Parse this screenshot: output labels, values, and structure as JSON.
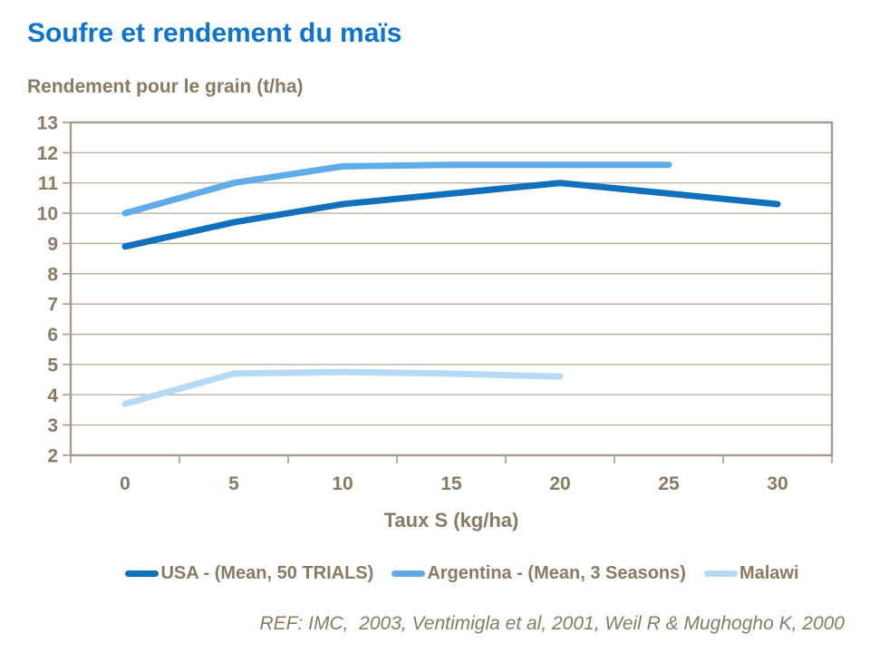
{
  "colors": {
    "title": "#0b74cc",
    "text": "#8a7a64",
    "frame": "#a59a8b",
    "grid": "#b4aa9c",
    "background": "#ffffff"
  },
  "chart_data": {
    "type": "line",
    "title": "Soufre et rendement du maïs",
    "ylabel": "Rendement pour le grain (t/ha)",
    "xlabel": "Taux S (kg/ha)",
    "categories": [
      0,
      5,
      10,
      15,
      20,
      25,
      30
    ],
    "yticks": [
      2,
      3,
      4,
      5,
      6,
      7,
      8,
      9,
      10,
      11,
      12,
      13
    ],
    "ylim": [
      2,
      13
    ],
    "grid": "horizontal",
    "legend_position": "bottom",
    "series": [
      {
        "name": "USA - (Mean, 50 TRIALS)",
        "color": "#1070bc",
        "x": [
          0,
          5,
          10,
          15,
          20,
          25,
          30
        ],
        "values": [
          8.9,
          9.7,
          10.3,
          10.65,
          11.0,
          10.65,
          10.3
        ]
      },
      {
        "name": "Argentina - (Mean, 3 Seasons)",
        "color": "#61abe9",
        "x": [
          0,
          5,
          10,
          15,
          20,
          25
        ],
        "values": [
          10.0,
          11.0,
          11.55,
          11.6,
          11.6,
          11.6
        ]
      },
      {
        "name": "Malawi",
        "color": "#b6d9f6",
        "x": [
          0,
          5,
          10,
          15,
          20
        ],
        "values": [
          3.7,
          4.7,
          4.75,
          4.7,
          4.6
        ]
      }
    ]
  },
  "footer": {
    "reference": "REF: IMC,  2003, Ventimigla et al, 2001, Weil R & Mughogho K, 2000"
  }
}
